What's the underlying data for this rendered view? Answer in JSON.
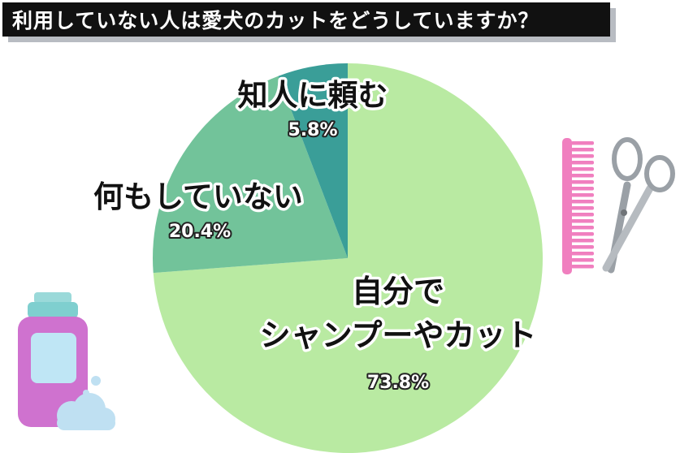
{
  "title": "利用していない人は愛犬のカットをどうしていますか？",
  "chart_data": {
    "type": "pie",
    "title": "利用していない人は愛犬のカットをどうしていますか？",
    "slices": [
      {
        "label_lines": [
          "自分で",
          "シャンプーやカット"
        ],
        "value": 73.8,
        "value_label": "73.8%",
        "color": "#b9eaa2"
      },
      {
        "label_lines": [
          "何もしていない"
        ],
        "value": 20.4,
        "value_label": "20.4%",
        "color": "#72c39a"
      },
      {
        "label_lines": [
          "知人に頼む"
        ],
        "value": 5.8,
        "value_label": "5.8%",
        "color": "#3a9e98"
      }
    ]
  },
  "decorations": {
    "comb_color": "#f07fbf",
    "scissors_color": "#9aa0a6",
    "bottle_color": "#cf72cf",
    "bubble_color": "#bfe0f2",
    "icons": [
      "comb-icon",
      "scissors-icon",
      "shampoo-bottle-icon",
      "soap-bubbles-icon"
    ]
  }
}
